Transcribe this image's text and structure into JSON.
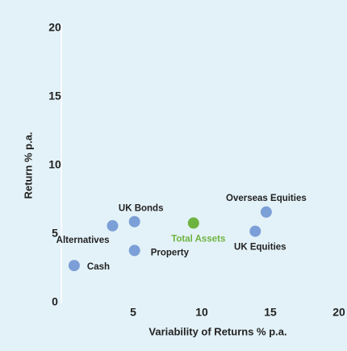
{
  "chart_data": {
    "type": "scatter",
    "xlabel": "Variability of Returns % p.a.",
    "ylabel": "Return % p.a.",
    "labels": [
      "Cash",
      "Alternatives",
      "UK Bonds",
      "Property",
      "Total Assets",
      "UK Equities",
      "Overseas Equities"
    ],
    "x": [
      0.7,
      3.5,
      5.1,
      5.1,
      9.4,
      13.9,
      14.7
    ],
    "values": [
      2.7,
      5.6,
      5.9,
      3.8,
      5.8,
      5.2,
      6.6
    ],
    "colors": [
      "#7b9fd6",
      "#7b9fd6",
      "#7b9fd6",
      "#7b9fd6",
      "#6db33f",
      "#7b9fd6",
      "#7b9fd6"
    ],
    "xlim": [
      0,
      20
    ],
    "xticks": [
      5,
      10,
      15,
      20
    ],
    "ylim": [
      0,
      20
    ],
    "yticks": [
      0,
      5,
      10,
      15,
      20
    ]
  }
}
